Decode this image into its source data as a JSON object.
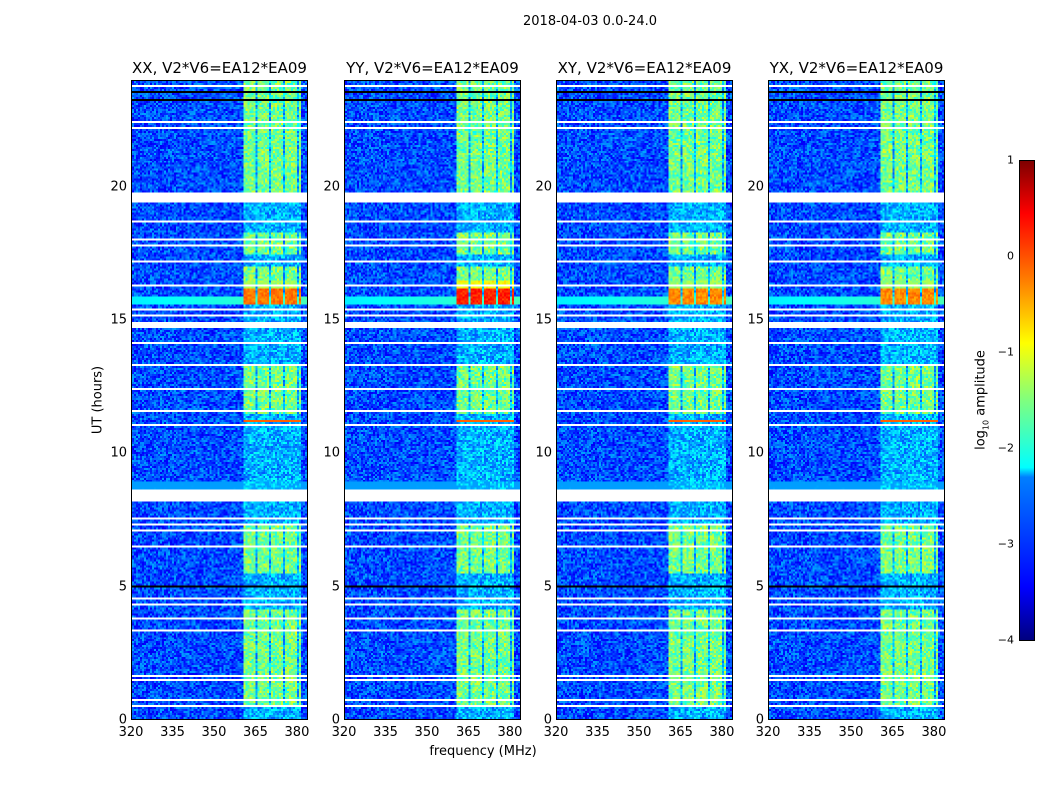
{
  "chart_data": {
    "type": "heatmap",
    "title": "2018-04-03 0.0-24.0",
    "xlabel": "frequency (MHz)",
    "ylabel": "UT (hours)",
    "xlim": [
      320,
      384
    ],
    "ylim": [
      0,
      24
    ],
    "xticks": [
      "320",
      "335",
      "350",
      "365",
      "380"
    ],
    "xtick_values": [
      320,
      335,
      350,
      365,
      380
    ],
    "yticks": [
      "0",
      "5",
      "10",
      "15",
      "20"
    ],
    "ytick_values": [
      0,
      5,
      10,
      15,
      20
    ],
    "panels": [
      {
        "title": "XX, V2*V6=EA12*EA09",
        "flare_level": -0.2
      },
      {
        "title": "YY, V2*V6=EA12*EA09",
        "flare_level": 0.2
      },
      {
        "title": "XY, V2*V6=EA12*EA09",
        "flare_level": -0.3
      },
      {
        "title": "YX, V2*V6=EA12*EA09",
        "flare_level": -0.3
      }
    ],
    "colorbar": {
      "label_main": "log",
      "label_sub": "10",
      "label_rest": " amplitude",
      "range": [
        -4,
        1
      ],
      "ticks": [
        "1",
        "0",
        "−1",
        "−2",
        "−3",
        "−4"
      ],
      "tick_values": [
        1,
        0,
        -1,
        -2,
        -3,
        -4
      ],
      "colormap": "jet"
    },
    "background_log_amp": -3.0,
    "band_mhz": [
      361,
      382
    ],
    "band_active_hours": [
      [
        0.5,
        4.1
      ],
      [
        5.5,
        7.3
      ],
      [
        11.5,
        13.3
      ],
      [
        16.0,
        17.0
      ],
      [
        17.5,
        18.3
      ],
      [
        19.8,
        24
      ]
    ],
    "flare_hours": [
      15.6,
      16.5
    ],
    "rfi_line_hour": 11.2,
    "flagged_gap_hours": [
      [
        0.48,
        0.55
      ],
      [
        0.66,
        0.72
      ],
      [
        1.45,
        1.52
      ],
      [
        1.58,
        1.65
      ],
      [
        3.3,
        3.38
      ],
      [
        3.78,
        3.84
      ],
      [
        4.3,
        4.36
      ],
      [
        4.5,
        4.56
      ],
      [
        5.9,
        5.95
      ],
      [
        6.45,
        6.5
      ],
      [
        7.05,
        7.1
      ],
      [
        7.3,
        7.35
      ],
      [
        7.5,
        7.55
      ],
      [
        8.2,
        8.6
      ],
      [
        11.05,
        11.1
      ],
      [
        11.55,
        11.6
      ],
      [
        12.4,
        12.45
      ],
      [
        13.3,
        13.35
      ],
      [
        14.1,
        14.15
      ],
      [
        14.7,
        14.9
      ],
      [
        15.15,
        15.2
      ],
      [
        15.4,
        15.45
      ],
      [
        16.3,
        16.35
      ],
      [
        17.2,
        17.25
      ],
      [
        17.6,
        17.65
      ],
      [
        17.8,
        17.85
      ],
      [
        18.0,
        18.05
      ],
      [
        18.7,
        18.75
      ],
      [
        19.4,
        19.8
      ],
      [
        20.3,
        20.35
      ],
      [
        22.2,
        22.25
      ],
      [
        22.45,
        22.5
      ],
      [
        23.75,
        23.85
      ]
    ],
    "black_row_hours": [
      [
        4.95,
        5.05
      ],
      [
        23.25,
        23.3
      ],
      [
        23.55,
        23.6
      ]
    ]
  }
}
